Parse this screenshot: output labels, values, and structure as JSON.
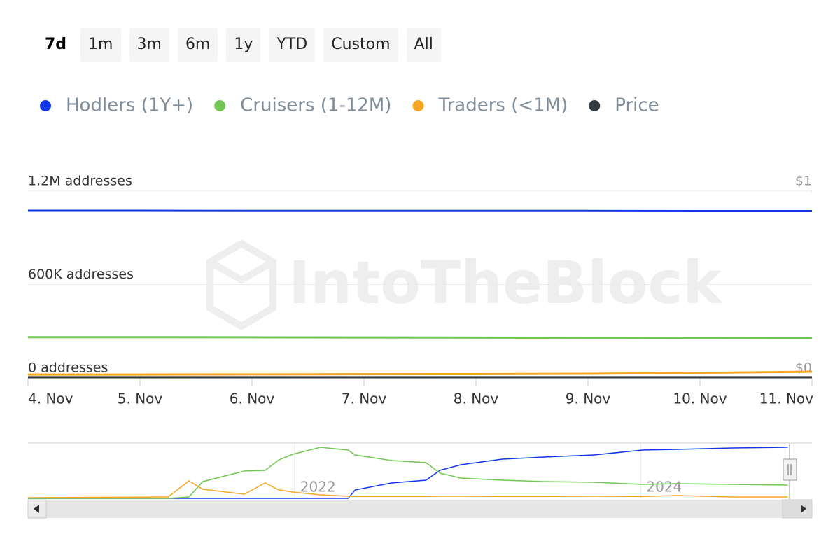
{
  "range_buttons": [
    "7d",
    "1m",
    "3m",
    "6m",
    "1y",
    "YTD",
    "Custom",
    "All"
  ],
  "watermark": "IntoTheBlock",
  "chart_data": [
    {
      "type": "line",
      "categories": [
        "4. Nov",
        "5. Nov",
        "6. Nov",
        "7. Nov",
        "8. Nov",
        "9. Nov",
        "10. Nov",
        "11. Nov"
      ],
      "series": [
        {
          "name": "Hodlers (1Y+)",
          "color": "#1237e6",
          "values": [
            1074000,
            1074000,
            1073000,
            1073000,
            1073000,
            1073000,
            1072000,
            1072000
          ]
        },
        {
          "name": "Cruisers (1-12M)",
          "color": "#72c754",
          "values": [
            262000,
            262000,
            261000,
            260000,
            259000,
            258000,
            257000,
            256000
          ]
        },
        {
          "name": "Traders (<1M)",
          "color": "#f5a623",
          "values": [
            22000,
            22000,
            23000,
            24000,
            25000,
            27000,
            33000,
            40000
          ]
        },
        {
          "name": "Price",
          "color": "#333a40",
          "axis": "y2",
          "values": [
            0.004,
            0.004,
            0.004,
            0.004,
            0.004,
            0.004,
            0.004,
            0.004
          ]
        }
      ],
      "ylim": [
        0,
        1200000
      ],
      "yticks": [
        {
          "value": 0,
          "label": "0 addresses"
        },
        {
          "value": 600000,
          "label": "600K addresses"
        },
        {
          "value": 1200000,
          "label": "1.2M addresses"
        }
      ],
      "y2lim": [
        0,
        1
      ],
      "y2ticks": [
        {
          "value": 0,
          "label": "$0"
        },
        {
          "value": 1,
          "label": "$1"
        }
      ],
      "grid": true
    },
    {
      "type": "line",
      "x": [
        2020.46,
        2021.27,
        2021.39,
        2021.47,
        2021.71,
        2021.83,
        2021.91,
        2021.99,
        2022.15,
        2022.31,
        2022.35,
        2022.56,
        2022.76,
        2022.84,
        2022.96,
        2023.2,
        2023.44,
        2023.73,
        2024.01,
        2024.21,
        2024.53,
        2024.85
      ],
      "xlim": [
        2020.46,
        2024.86
      ],
      "xticks": [
        {
          "value": 2022,
          "label": "2022"
        },
        {
          "value": 2024,
          "label": "2024"
        }
      ],
      "ylim": [
        0,
        1200000
      ],
      "series": [
        {
          "color": "#1237e6",
          "values": [
            0,
            0,
            0,
            0,
            0,
            0,
            0,
            0,
            0,
            0,
            182000,
            334000,
            395000,
            608000,
            729000,
            851000,
            896000,
            942000,
            1048000,
            1063000,
            1094000,
            1109000
          ]
        },
        {
          "color": "#72c754",
          "values": [
            0,
            0,
            30000,
            365000,
            592000,
            608000,
            835000,
            957000,
            1109000,
            1048000,
            942000,
            820000,
            775000,
            547000,
            440000,
            395000,
            365000,
            349000,
            304000,
            319000,
            304000,
            289000
          ]
        },
        {
          "color": "#f5a623",
          "values": [
            15000,
            30000,
            380000,
            197000,
            91000,
            334000,
            182000,
            137000,
            76000,
            46000,
            40000,
            40000,
            40000,
            46000,
            46000,
            40000,
            40000,
            46000,
            40000,
            60000,
            30000,
            30000
          ]
        }
      ]
    }
  ]
}
